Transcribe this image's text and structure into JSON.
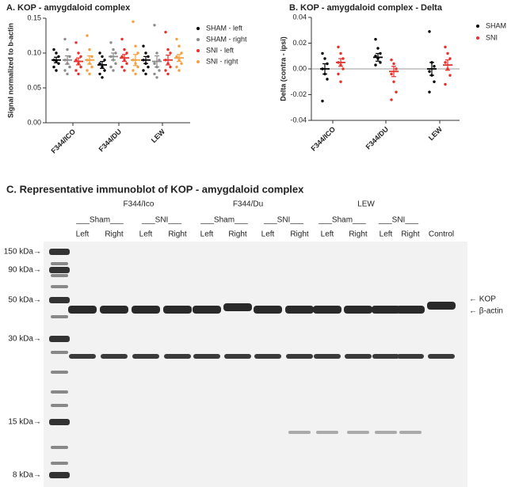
{
  "chart_data": [
    {
      "type": "strip",
      "title": "A. KOP - amygdaloid complex",
      "y_label": "Signal normalized to b-actin",
      "categories": [
        "F344/ICO",
        "F344/DU",
        "LEW"
      ],
      "ylim": [
        0,
        0.15
      ],
      "yticks": [
        {
          "value": 0,
          "label": "0.00"
        },
        {
          "value": 0.05,
          "label": "0.05"
        },
        {
          "value": 0.1,
          "label": "0.10"
        },
        {
          "value": 0.15,
          "label": "0.15"
        }
      ],
      "series": [
        {
          "name": "SHAM - left",
          "color": "#000000",
          "values": [
            [
              0.105,
              0.1,
              0.095,
              0.09,
              0.088,
              0.085,
              0.08,
              0.075
            ],
            [
              0.1,
              0.095,
              0.09,
              0.085,
              0.08,
              0.075,
              0.07,
              0.065
            ],
            [
              0.11,
              0.1,
              0.095,
              0.09,
              0.085,
              0.08,
              0.075,
              0.07
            ]
          ],
          "means": [
            0.09,
            0.083,
            0.09
          ],
          "errors": [
            0.004,
            0.005,
            0.005
          ]
        },
        {
          "name": "SHAM - right",
          "color": "#8c8c8c",
          "values": [
            [
              0.12,
              0.105,
              0.095,
              0.09,
              0.085,
              0.08,
              0.075,
              0.07
            ],
            [
              0.115,
              0.105,
              0.1,
              0.095,
              0.09,
              0.085,
              0.08,
              0.075
            ],
            [
              0.14,
              0.1,
              0.09,
              0.085,
              0.08,
              0.075,
              0.07,
              0.065
            ]
          ],
          "means": [
            0.09,
            0.095,
            0.088
          ],
          "errors": [
            0.006,
            0.005,
            0.008
          ]
        },
        {
          "name": "SNI - left",
          "color": "#e8302a",
          "values": [
            [
              0.115,
              0.1,
              0.095,
              0.09,
              0.085,
              0.08,
              0.075,
              0.07
            ],
            [
              0.12,
              0.105,
              0.1,
              0.095,
              0.09,
              0.085,
              0.08,
              0.075
            ],
            [
              0.13,
              0.105,
              0.1,
              0.09,
              0.085,
              0.08,
              0.075,
              0.07
            ]
          ],
          "means": [
            0.088,
            0.093,
            0.09
          ],
          "errors": [
            0.005,
            0.005,
            0.007
          ]
        },
        {
          "name": "SNI - right",
          "color": "#f5a040",
          "values": [
            [
              0.125,
              0.105,
              0.095,
              0.09,
              0.085,
              0.08,
              0.075,
              0.07
            ],
            [
              0.145,
              0.11,
              0.1,
              0.09,
              0.085,
              0.08,
              0.075,
              0.07
            ],
            [
              0.12,
              0.11,
              0.1,
              0.095,
              0.09,
              0.085,
              0.08,
              0.075
            ]
          ],
          "means": [
            0.09,
            0.09,
            0.093
          ],
          "errors": [
            0.006,
            0.008,
            0.005
          ]
        }
      ]
    },
    {
      "type": "strip",
      "title": "B. KOP - amygdaloid complex - Delta",
      "y_label": "Delta (contra - ipsi)",
      "categories": [
        "F344/ICO",
        "F344/DU",
        "LEW"
      ],
      "ylim": [
        -0.04,
        0.04
      ],
      "yticks": [
        {
          "value": -0.04,
          "label": "-0.04"
        },
        {
          "value": -0.02,
          "label": "-0.02"
        },
        {
          "value": 0,
          "label": "0.00"
        },
        {
          "value": 0.02,
          "label": "0.02"
        },
        {
          "value": 0.04,
          "label": "0.04"
        }
      ],
      "zero_line": true,
      "series": [
        {
          "name": "SHAM",
          "color": "#000000",
          "values": [
            [
              0.012,
              0.008,
              0.004,
              0.0,
              -0.004,
              -0.008,
              -0.025
            ],
            [
              0.023,
              0.016,
              0.012,
              0.01,
              0.008,
              0.005,
              0.003
            ],
            [
              0.029,
              0.005,
              0.002,
              -0.002,
              -0.005,
              -0.01,
              -0.018
            ]
          ],
          "means": [
            0.0,
            0.009,
            0.0
          ],
          "errors": [
            0.004,
            0.003,
            0.005
          ]
        },
        {
          "name": "SNI",
          "color": "#e8302a",
          "values": [
            [
              0.017,
              0.012,
              0.008,
              0.005,
              0.003,
              0.0,
              -0.004,
              -0.01
            ],
            [
              0.007,
              0.004,
              0.0,
              -0.004,
              -0.01,
              -0.018,
              -0.024
            ],
            [
              0.017,
              0.012,
              0.008,
              0.005,
              0.0,
              -0.005,
              -0.012
            ]
          ],
          "means": [
            0.005,
            -0.002,
            0.003
          ],
          "errors": [
            0.003,
            0.004,
            0.004
          ]
        }
      ]
    }
  ],
  "blot": {
    "title": "C. Representative immunoblot of KOP - amygdaloid complex",
    "strains": [
      "F344/Ico",
      "F344/Du",
      "LEW"
    ],
    "groups": [
      "___Sham___",
      "___SNI___",
      "___Sham___",
      "___SNI___",
      "___Sham___",
      "___SNI___"
    ],
    "lanes": [
      "Left",
      "Right",
      "Left",
      "Right",
      "Left",
      "Right",
      "Left",
      "Right",
      "Left",
      "Right",
      "Left",
      "Right",
      "Control"
    ],
    "markers": [
      "150 kDa→",
      "90 kDa→",
      "50 kDa→",
      "30 kDa→",
      "15 kDa→",
      "8 kDa→"
    ],
    "bands": [
      "← KOP",
      "← β-actin"
    ]
  }
}
